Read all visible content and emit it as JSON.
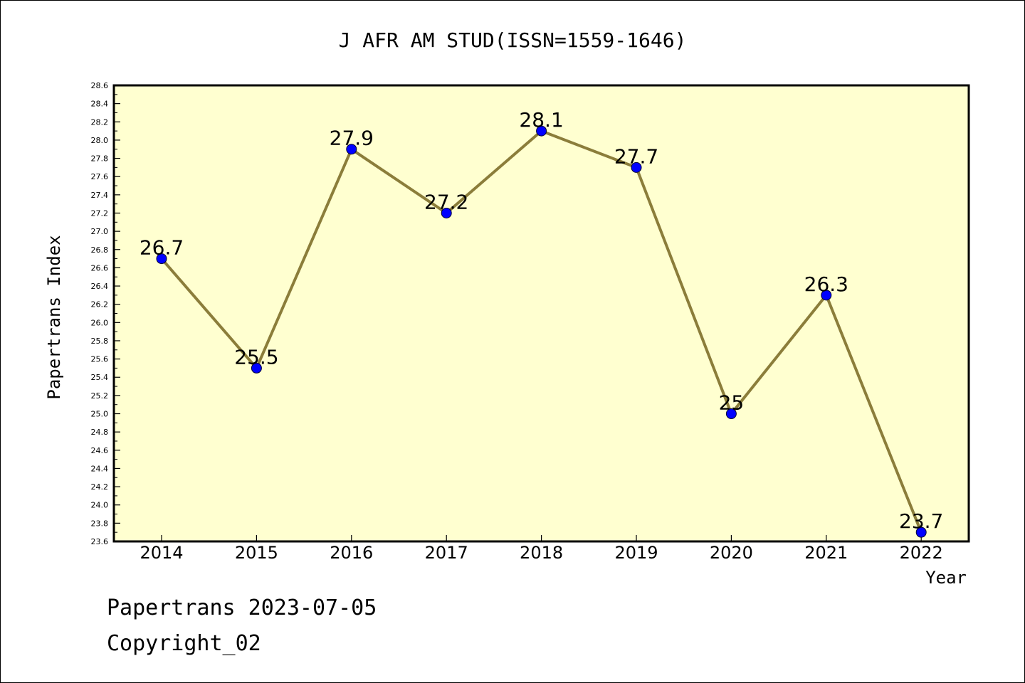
{
  "chart_data": {
    "type": "line",
    "title": "J AFR AM STUD(ISSN=1559-1646)",
    "xlabel": "Year",
    "ylabel": "Papertrans Index",
    "categories": [
      "2014",
      "2015",
      "2016",
      "2017",
      "2018",
      "2019",
      "2020",
      "2021",
      "2022"
    ],
    "values": [
      26.7,
      25.5,
      27.9,
      27.2,
      28.1,
      27.7,
      25.0,
      26.3,
      23.7
    ],
    "data_labels": [
      "26.7",
      "25.5",
      "27.9",
      "27.2",
      "28.1",
      "27.7",
      "25",
      "26.3",
      "23.7"
    ],
    "ylim": [
      23.6,
      28.6
    ],
    "yticks": [
      "23.6",
      "23.8",
      "24.0",
      "24.2",
      "24.4",
      "24.6",
      "24.8",
      "25.0",
      "25.2",
      "25.4",
      "25.6",
      "25.8",
      "26.0",
      "26.2",
      "26.4",
      "26.6",
      "26.8",
      "27.0",
      "27.2",
      "27.4",
      "27.6",
      "27.8",
      "28.0",
      "28.2",
      "28.4",
      "28.6"
    ],
    "grid": false,
    "colors": {
      "plot_background": "#ffffd0",
      "line": "#8b7d3a",
      "marker": "#0000ff"
    }
  },
  "footer": {
    "line1": "Papertrans 2023-07-05",
    "line2": "Copyright_02"
  }
}
